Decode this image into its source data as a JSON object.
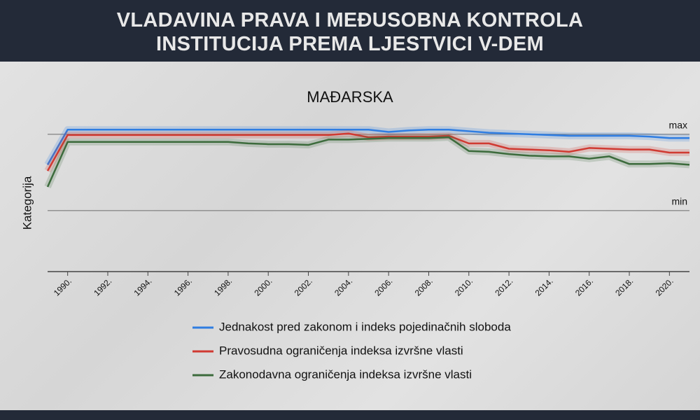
{
  "chart_data": {
    "type": "line",
    "title": "VLADAVINA PRAVA I MEĐUSOBNA KONTROLA INSTITUCIJA PREMA LJESTVICI V-DEM",
    "subtitle": "MAĐARSKA",
    "y_label": "Kategorija",
    "x": [
      1989,
      1990,
      1991,
      1992,
      1993,
      1994,
      1995,
      1996,
      1997,
      1998,
      1999,
      2000,
      2001,
      2002,
      2003,
      2004,
      2005,
      2006,
      2007,
      2008,
      2009,
      2010,
      2011,
      2012,
      2013,
      2014,
      2015,
      2016,
      2017,
      2018,
      2019,
      2020,
      2021
    ],
    "xlim": [
      1989,
      2021
    ],
    "xticks": [
      {
        "value": 1990,
        "label": "1990."
      },
      {
        "value": 1992,
        "label": "1992."
      },
      {
        "value": 1994,
        "label": "1994."
      },
      {
        "value": 1996,
        "label": "1996."
      },
      {
        "value": 1998,
        "label": "1998."
      },
      {
        "value": 2000,
        "label": "2000."
      },
      {
        "value": 2002,
        "label": "2002."
      },
      {
        "value": 2004,
        "label": "2004."
      },
      {
        "value": 2006,
        "label": "2006."
      },
      {
        "value": 2008,
        "label": "2008."
      },
      {
        "value": 2010,
        "label": "2010."
      },
      {
        "value": 2012,
        "label": "2012."
      },
      {
        "value": 2014,
        "label": "2014."
      },
      {
        "value": 2016,
        "label": "2016."
      },
      {
        "value": 2018,
        "label": "2018."
      },
      {
        "value": 2020,
        "label": "2020."
      }
    ],
    "ylim": [
      -0.8,
      1.2
    ],
    "yticks": [
      {
        "value": 1,
        "label": "max"
      },
      {
        "value": 0,
        "label": "min"
      }
    ],
    "grid": true,
    "series": [
      {
        "name": "Jednakost pred zakonom i indeks pojedinačnih sloboda",
        "color": "#2f7de1",
        "values": [
          0.6,
          1.06,
          1.06,
          1.06,
          1.06,
          1.06,
          1.06,
          1.06,
          1.06,
          1.06,
          1.06,
          1.06,
          1.06,
          1.06,
          1.06,
          1.06,
          1.06,
          1.03,
          1.05,
          1.06,
          1.06,
          1.04,
          1.02,
          1.01,
          1.0,
          0.99,
          0.98,
          0.98,
          0.98,
          0.98,
          0.97,
          0.95,
          0.95
        ]
      },
      {
        "name": "Pravosudna ograničenja indeksa izvršne vlasti",
        "color": "#d03a32",
        "values": [
          0.52,
          0.99,
          0.99,
          0.99,
          0.99,
          0.99,
          0.99,
          0.99,
          0.99,
          0.99,
          0.99,
          0.99,
          0.99,
          0.99,
          0.99,
          1.01,
          0.96,
          0.97,
          0.97,
          0.97,
          0.98,
          0.88,
          0.88,
          0.81,
          0.8,
          0.79,
          0.77,
          0.82,
          0.81,
          0.8,
          0.8,
          0.76,
          0.76
        ]
      },
      {
        "name": "Zakonodavna ograničenja indeksa izvršne vlasti",
        "color": "#3c6b3c",
        "values": [
          0.31,
          0.9,
          0.9,
          0.9,
          0.9,
          0.9,
          0.9,
          0.9,
          0.9,
          0.9,
          0.88,
          0.87,
          0.87,
          0.86,
          0.93,
          0.93,
          0.94,
          0.95,
          0.95,
          0.95,
          0.96,
          0.78,
          0.77,
          0.74,
          0.72,
          0.71,
          0.71,
          0.68,
          0.71,
          0.61,
          0.61,
          0.62,
          0.6
        ]
      }
    ]
  }
}
